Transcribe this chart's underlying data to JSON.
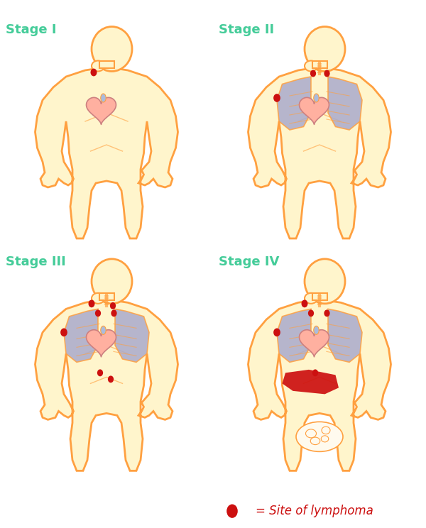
{
  "background_color": "#ffffff",
  "body_fill": "#FFF5CC",
  "body_outline": "#FFA040",
  "lung_fill": "#AAAACC",
  "heart_fill": "#FFB0A0",
  "heart_detail": "#CC8080",
  "lym_color": "#CC1010",
  "stage_color": "#44CC99",
  "stage_labels": [
    "Stage I",
    "Stage II",
    "Stage III",
    "Stage IV"
  ],
  "legend_text": "= Site of lymphoma",
  "stage_fontsize": 13,
  "legend_fontsize": 12
}
